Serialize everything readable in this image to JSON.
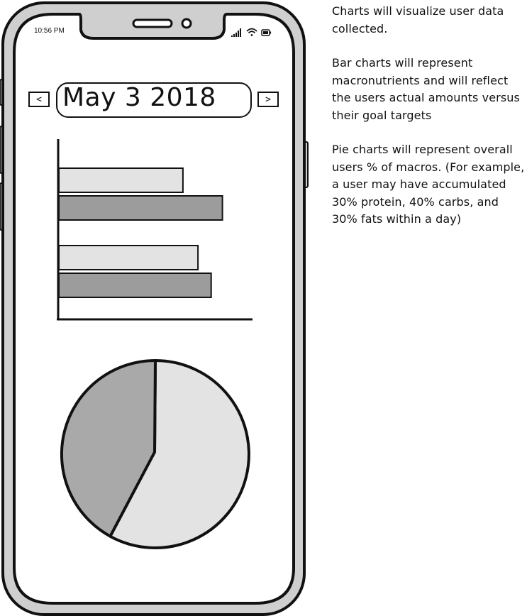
{
  "status_bar": {
    "time": "10:56 PM"
  },
  "header": {
    "date": "May 3 2018",
    "prev_label": "<",
    "next_label": ">"
  },
  "notes": {
    "paragraphs": [
      "Charts will visualize user data collected.",
      "Bar charts will represent macronutrients and will reflect the users actual amounts versus their goal targets",
      "Pie charts will represent overall users % of macros. (For example, a user may have accumulated 30% protein, 40% carbs, and 30% fats within a day)"
    ]
  },
  "colors": {
    "frame": "#111111",
    "device_body": "#cfcfcf",
    "light_fill": "#e3e3e3",
    "dark_fill": "#9c9c9c",
    "pie_dark": "#a9a9a9"
  },
  "chart_data": [
    {
      "type": "bar",
      "orientation": "horizontal",
      "series": [
        {
          "values": [
            0.66,
            0.87
          ]
        },
        {
          "values": [
            0.74,
            0.81
          ]
        }
      ]
    },
    {
      "type": "pie",
      "values": [
        58,
        42
      ]
    }
  ]
}
